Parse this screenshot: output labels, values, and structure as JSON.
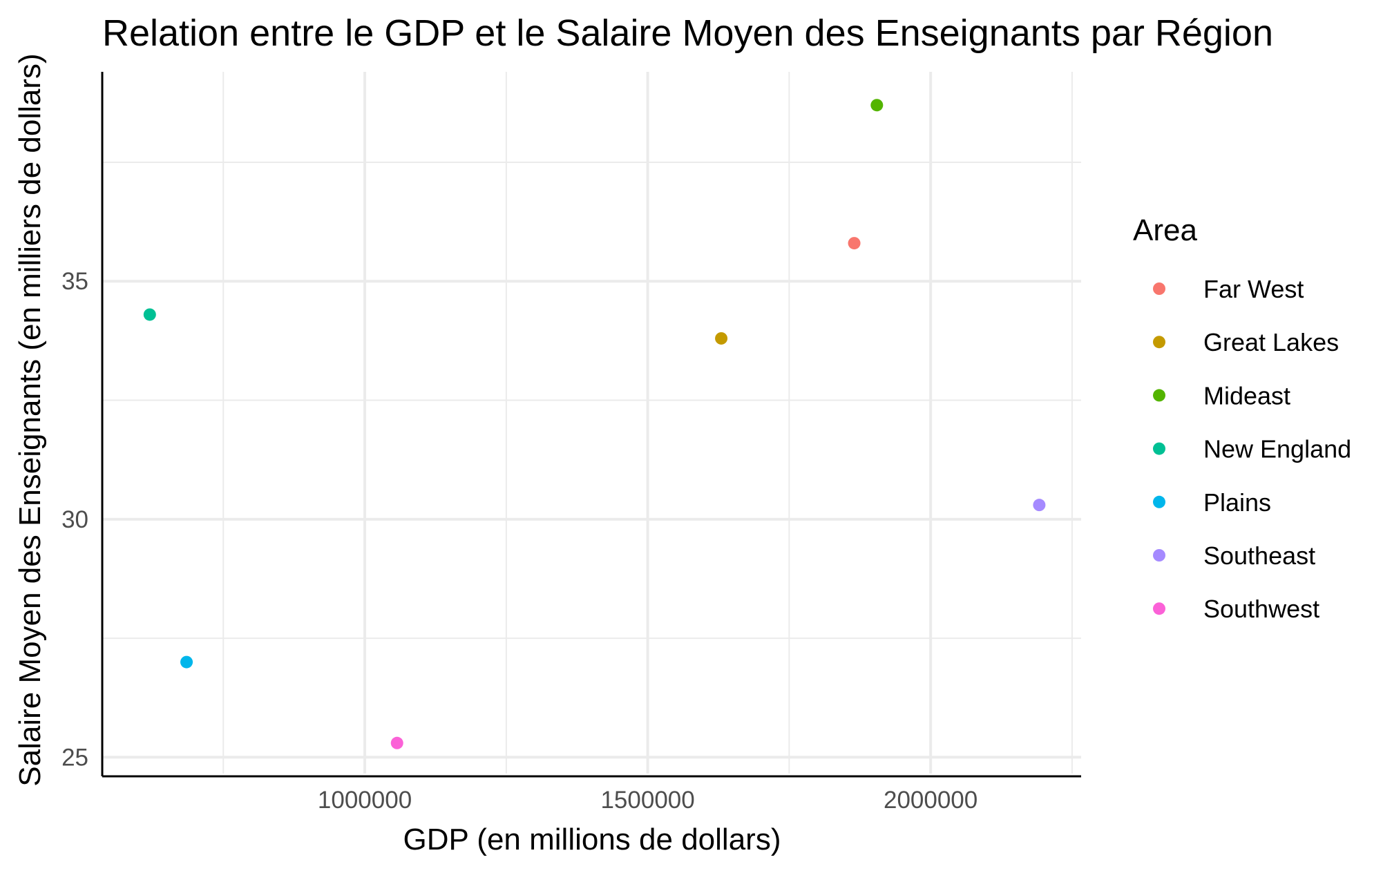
{
  "chart_data": {
    "type": "scatter",
    "title": "Relation entre le GDP et le Salaire Moyen des Enseignants par Région",
    "xlabel": "GDP (en millions de dollars)",
    "ylabel": "Salaire Moyen des Enseignants (en milliers de dollars)",
    "xlim": [
      536000,
      2266000
    ],
    "ylim": [
      24.6,
      39.4
    ],
    "x_ticks": [
      1000000,
      1500000,
      2000000
    ],
    "x_tick_labels": [
      "1000000",
      "1500000",
      "2000000"
    ],
    "y_ticks": [
      25,
      30,
      35
    ],
    "y_tick_labels": [
      "25",
      "30",
      "35"
    ],
    "grid": true,
    "legend": {
      "title": "Area",
      "position": "right"
    },
    "series": [
      {
        "name": "Far West",
        "color": "#F8766D",
        "x": [
          1865000
        ],
        "y": [
          35.8
        ]
      },
      {
        "name": "Great Lakes",
        "color": "#C49A00",
        "x": [
          1630000
        ],
        "y": [
          33.8
        ]
      },
      {
        "name": "Mideast",
        "color": "#53B400",
        "x": [
          1905000
        ],
        "y": [
          38.7
        ]
      },
      {
        "name": "New England",
        "color": "#00C094",
        "x": [
          620000
        ],
        "y": [
          34.3
        ]
      },
      {
        "name": "Plains",
        "color": "#00B6EB",
        "x": [
          685000
        ],
        "y": [
          27.0
        ]
      },
      {
        "name": "Southeast",
        "color": "#A58AFF",
        "x": [
          2192000
        ],
        "y": [
          30.3
        ]
      },
      {
        "name": "Southwest",
        "color": "#FB61D7",
        "x": [
          1057000
        ],
        "y": [
          25.3
        ]
      }
    ]
  }
}
